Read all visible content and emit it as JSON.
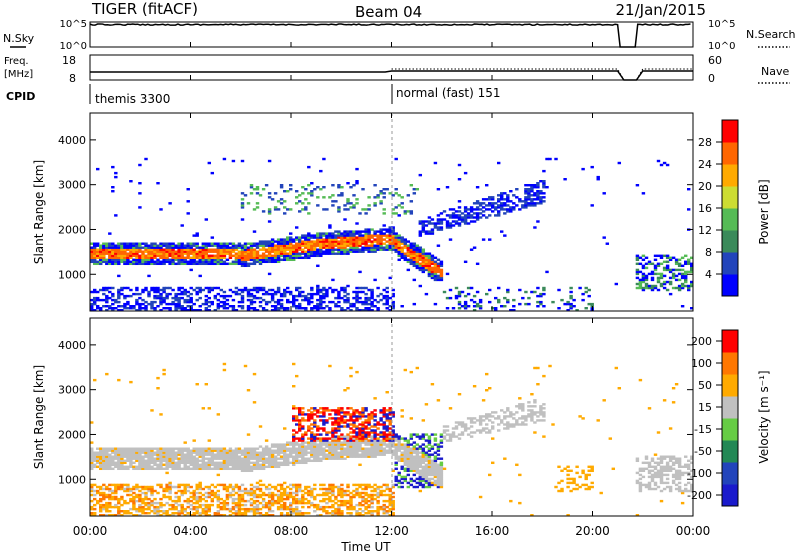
{
  "header": {
    "title": "TIGER (fitACF)",
    "beam": "Beam 04",
    "date": "21/Jan/2015"
  },
  "chart_data": [
    {
      "type": "line",
      "label_left": "N.Sky",
      "label_right": "N.Search",
      "y_ticks_left": [
        "10^5",
        "10^0"
      ],
      "y_ticks_right": [
        "10^5",
        "10^0"
      ],
      "note": "N.Sky near 10^5 throughout with data gap 21:00-21:45"
    },
    {
      "type": "line",
      "label_left_top": "Freq.",
      "label_left_bottom": "[MHz]",
      "label_right": "Nave",
      "y_ticks_left": [
        "18",
        "8"
      ],
      "y_ticks_right": [
        "60",
        "0"
      ],
      "ylim_left": [
        8,
        18
      ],
      "ylim_right": [
        0,
        60
      ]
    },
    {
      "type": "table",
      "label": "CPID",
      "segments": [
        {
          "start_hour": 0,
          "text": "themis 3300"
        },
        {
          "start_hour": 12,
          "text": "normal (fast) 151"
        }
      ]
    },
    {
      "type": "heatmap",
      "ylabel": "Slant Range [km]",
      "y_ticks": [
        "1000",
        "2000",
        "3000",
        "4000"
      ],
      "ylim": [
        180,
        4600
      ],
      "colorbar_label": "Power [dB]",
      "colorbar_ticks": [
        "4",
        "8",
        "12",
        "16",
        "20",
        "24",
        "28"
      ],
      "colorbar_range": [
        0,
        32
      ],
      "colors": [
        "#0000ff",
        "#2244bb",
        "#3a8a5a",
        "#55bb55",
        "#ccdd33",
        "#ffaa00",
        "#ff6600",
        "#ff0000"
      ]
    },
    {
      "type": "heatmap",
      "ylabel": "Slant Range [km]",
      "y_ticks": [
        "1000",
        "2000",
        "3000",
        "4000"
      ],
      "ylim": [
        180,
        4600
      ],
      "colorbar_label": "Velocity [m s⁻¹]",
      "colorbar_ticks": [
        "200",
        "100",
        "50",
        "15",
        "-15",
        "-50",
        "-100",
        "-200"
      ],
      "colors": [
        "#1a1acc",
        "#2244bb",
        "#228855",
        "#66cc44",
        "#c0c0c0",
        "#ffaa00",
        "#ff7700",
        "#ff0000"
      ]
    }
  ],
  "x_axis": {
    "label": "Time UT",
    "ticks": [
      "00:00",
      "04:00",
      "08:00",
      "12:00",
      "16:00",
      "20:00",
      "00:00"
    ],
    "range_hours": [
      0,
      24
    ]
  }
}
